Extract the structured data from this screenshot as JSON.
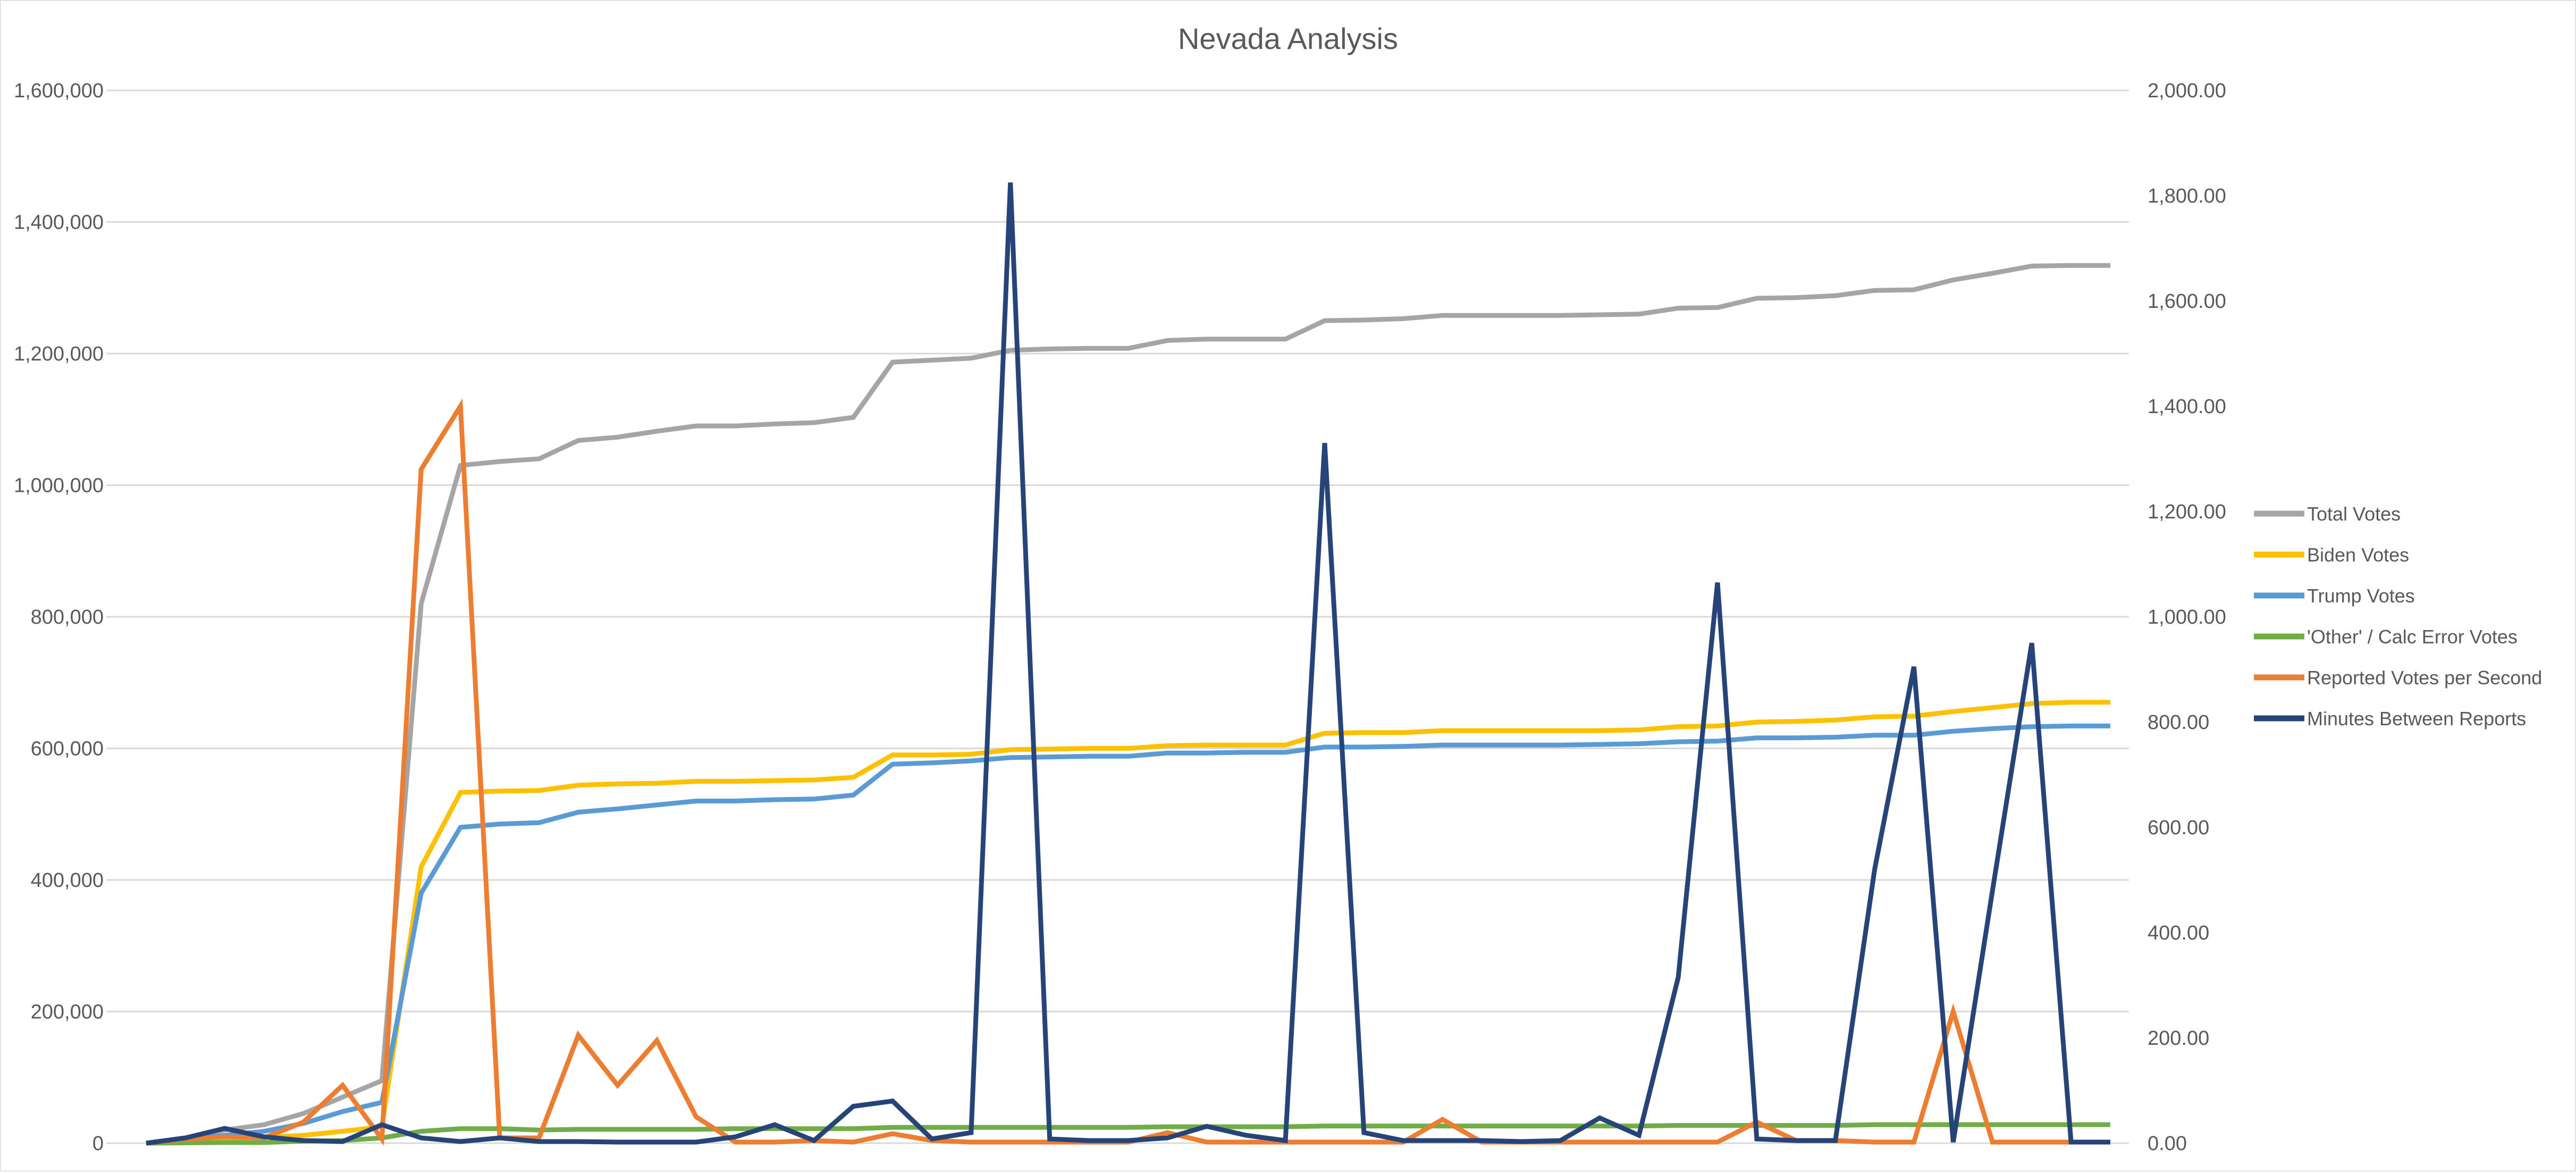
{
  "chart_data": {
    "type": "line",
    "title": "Nevada Analysis",
    "y_left": {
      "range": [
        0,
        1600000
      ],
      "ticks": [
        "1,600,000",
        "1,400,000",
        "1,200,000",
        "1,000,000",
        "800,000",
        "600,000",
        "400,000",
        "200,000",
        "0"
      ]
    },
    "y_right": {
      "range": [
        0,
        2000
      ],
      "ticks": [
        "2,000.00",
        "1,800.00",
        "1,600.00",
        "1,400.00",
        "1,200.00",
        "1,000.00",
        "800.00",
        "600.00",
        "400.00",
        "200.00",
        "0.00"
      ]
    },
    "grid": true,
    "legend_position": "right",
    "x_points": 51,
    "series": [
      {
        "name": "Total Votes",
        "axis": "left",
        "color": "#a5a5a5",
        "values": [
          0,
          8000,
          20000,
          28000,
          45000,
          70000,
          95000,
          820000,
          1030000,
          1036000,
          1040000,
          1068000,
          1073000,
          1082000,
          1090000,
          1090000,
          1093000,
          1095000,
          1103000,
          1187000,
          1190000,
          1193000,
          1205000,
          1207000,
          1208000,
          1208000,
          1220000,
          1222000,
          1222000,
          1222000,
          1250000,
          1251000,
          1253000,
          1258000,
          1258000,
          1258000,
          1258000,
          1259000,
          1260000,
          1269000,
          1270000,
          1284000,
          1285000,
          1288000,
          1296000,
          1297000,
          1312000,
          1322000,
          1333000,
          1334000,
          1334000
        ]
      },
      {
        "name": "Biden Votes",
        "axis": "left",
        "color": "#ffc000",
        "values": [
          0,
          3000,
          7000,
          9000,
          12000,
          18000,
          25000,
          420000,
          533000,
          535000,
          536000,
          544000,
          546000,
          547000,
          550000,
          550000,
          551000,
          552000,
          556000,
          590000,
          590000,
          591000,
          598000,
          599000,
          600000,
          600000,
          604000,
          605000,
          605000,
          605000,
          623000,
          624000,
          624000,
          627000,
          627000,
          627000,
          627000,
          627000,
          628000,
          633000,
          634000,
          640000,
          641000,
          643000,
          648000,
          649000,
          656000,
          662000,
          668000,
          670000,
          670000
        ]
      },
      {
        "name": "Trump Votes",
        "axis": "left",
        "color": "#5b9bd5",
        "values": [
          0,
          5000,
          12000,
          18000,
          30000,
          48000,
          62000,
          380000,
          480000,
          485000,
          487000,
          503000,
          508000,
          514000,
          520000,
          520000,
          522000,
          523000,
          529000,
          576000,
          578000,
          581000,
          586000,
          587000,
          588000,
          588000,
          593000,
          593000,
          594000,
          594000,
          602000,
          602000,
          603000,
          605000,
          605000,
          605000,
          605000,
          606000,
          607000,
          610000,
          611000,
          616000,
          616000,
          617000,
          620000,
          620000,
          626000,
          630000,
          633000,
          634000,
          634000
        ]
      },
      {
        "name": "'Other' / Calc Error Votes",
        "axis": "left",
        "color": "#70ad47",
        "values": [
          0,
          500,
          1000,
          1000,
          3000,
          4000,
          8000,
          18000,
          22000,
          22000,
          20000,
          21000,
          21000,
          21000,
          21000,
          22000,
          22000,
          22000,
          22000,
          24000,
          24000,
          24000,
          24000,
          24000,
          24000,
          24000,
          25000,
          25000,
          25000,
          25000,
          26000,
          26000,
          26000,
          26000,
          26000,
          26000,
          26000,
          26000,
          26000,
          27000,
          27000,
          27000,
          27000,
          27000,
          28000,
          28000,
          28000,
          28000,
          28000,
          28000,
          28000
        ]
      },
      {
        "name": "Reported Votes per Second",
        "axis": "right",
        "color": "#ed7d31",
        "values": [
          0,
          8,
          12,
          10,
          40,
          110,
          8,
          1280,
          1400,
          10,
          10,
          205,
          110,
          195,
          50,
          2,
          2,
          5,
          2,
          18,
          5,
          2,
          2,
          2,
          2,
          2,
          20,
          2,
          2,
          2,
          2,
          2,
          2,
          45,
          2,
          2,
          2,
          2,
          2,
          2,
          2,
          40,
          5,
          5,
          2,
          2,
          250,
          2,
          2,
          2,
          2
        ]
      },
      {
        "name": "Minutes Between Reports",
        "axis": "right",
        "color": "#264478",
        "values": [
          0,
          10,
          28,
          12,
          5,
          3,
          35,
          10,
          3,
          10,
          3,
          3,
          2,
          2,
          2,
          12,
          35,
          5,
          70,
          80,
          8,
          20,
          1825,
          8,
          5,
          5,
          10,
          32,
          15,
          5,
          1330,
          20,
          5,
          5,
          5,
          3,
          5,
          48,
          15,
          315,
          1065,
          8,
          5,
          5,
          520,
          905,
          2,
          480,
          950,
          2,
          2
        ]
      }
    ]
  }
}
